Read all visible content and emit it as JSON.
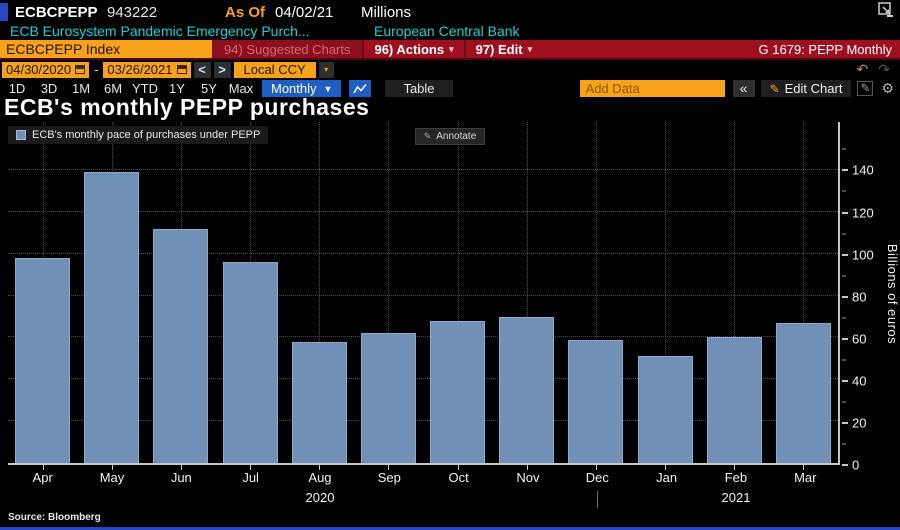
{
  "header": {
    "security": "ECBCPEPP",
    "value": "943222",
    "as_of_label": "As Of",
    "as_of_date": "04/02/21",
    "units": "Millions",
    "description": "ECB Eurosystem Pandemic Emergency Purch...",
    "issuer": "European Central Bank"
  },
  "red_toolbar": {
    "ticker_input": "ECBCPEPP Index",
    "suggested_charts_label": "94) Suggested Charts",
    "actions_label": "96) Actions",
    "edit_label": "97) Edit",
    "chart_id_label": "G 1679: PEPP Monthly"
  },
  "date_toolbar": {
    "start_date": "04/30/2020",
    "range_separator": "-",
    "end_date": "03/26/2021",
    "prev_label": "<",
    "next_label": ">",
    "currency_selector": "Local CCY"
  },
  "period_toolbar": {
    "periods": [
      "1D",
      "3D",
      "1M",
      "6M",
      "YTD",
      "1Y",
      "5Y",
      "Max"
    ],
    "frequency_selector": "Monthly",
    "table_label": "Table",
    "add_data_placeholder": "Add Data",
    "collapse_label": "«",
    "edit_chart_label": "Edit Chart"
  },
  "chart": {
    "title": "ECB's monthly PEPP purchases",
    "legend_label": "ECB's monthly pace of purchases under PEPP",
    "annotate_label": "Annotate",
    "source_label": "Source: Bloomberg",
    "y_axis_title": "Billions of euros"
  },
  "chart_data": {
    "type": "bar",
    "title": "ECB's monthly PEPP purchases",
    "series_name": "ECB's monthly pace of purchases under PEPP",
    "categories": [
      "Apr",
      "May",
      "Jun",
      "Jul",
      "Aug",
      "Sep",
      "Oct",
      "Nov",
      "Dec",
      "Jan",
      "Feb",
      "Mar"
    ],
    "values": [
      98,
      139,
      112,
      96,
      58,
      62,
      68,
      70,
      59,
      51,
      60,
      67
    ],
    "ylabel": "Billions of euros",
    "ylim": [
      0,
      150
    ],
    "yticks": [
      0,
      20,
      40,
      60,
      80,
      100,
      120,
      140
    ],
    "year_labels": [
      {
        "label": "2020",
        "center_category_index": 4
      },
      {
        "label": "2021",
        "center_category_index": 10
      }
    ],
    "year_divider_category_index": 8,
    "bar_color": "#7190b8",
    "grid": true,
    "legend_position": "top-left"
  },
  "colors": {
    "accent_orange": "#f8a21b",
    "toolbar_red": "#9e1020",
    "selected_blue": "#1f5fc4",
    "bar_blue": "#7190b8",
    "cyan_text": "#17d1d6",
    "bottom_strip_blue": "#2847c9"
  }
}
